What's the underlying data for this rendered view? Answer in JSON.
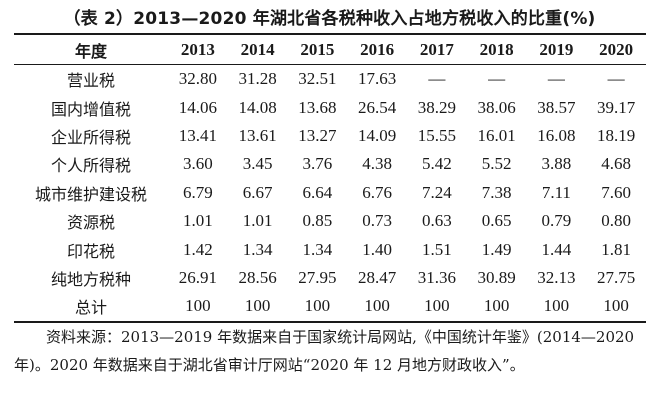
{
  "title": "（表 2）2013—2020 年湖北省各税种收入占地方税收入的比重(%)",
  "table": {
    "header_label": "年度",
    "years": [
      "2013",
      "2014",
      "2015",
      "2016",
      "2017",
      "2018",
      "2019",
      "2020"
    ],
    "rows": [
      {
        "label": "营业税",
        "values": [
          "32.80",
          "31.28",
          "32.51",
          "17.63",
          "—",
          "—",
          "—",
          "—"
        ]
      },
      {
        "label": "国内增值税",
        "values": [
          "14.06",
          "14.08",
          "13.68",
          "26.54",
          "38.29",
          "38.06",
          "38.57",
          "39.17"
        ]
      },
      {
        "label": "企业所得税",
        "values": [
          "13.41",
          "13.61",
          "13.27",
          "14.09",
          "15.55",
          "16.01",
          "16.08",
          "18.19"
        ]
      },
      {
        "label": "个人所得税",
        "values": [
          "3.60",
          "3.45",
          "3.76",
          "4.38",
          "5.42",
          "5.52",
          "3.88",
          "4.68"
        ]
      },
      {
        "label": "城市维护建设税",
        "values": [
          "6.79",
          "6.67",
          "6.64",
          "6.76",
          "7.24",
          "7.38",
          "7.11",
          "7.60"
        ]
      },
      {
        "label": "资源税",
        "values": [
          "1.01",
          "1.01",
          "0.85",
          "0.73",
          "0.63",
          "0.65",
          "0.79",
          "0.80"
        ]
      },
      {
        "label": "印花税",
        "values": [
          "1.42",
          "1.34",
          "1.34",
          "1.40",
          "1.51",
          "1.49",
          "1.44",
          "1.81"
        ]
      },
      {
        "label": "纯地方税种",
        "values": [
          "26.91",
          "28.56",
          "27.95",
          "28.47",
          "31.36",
          "30.89",
          "32.13",
          "27.75"
        ]
      },
      {
        "label": "总计",
        "values": [
          "100",
          "100",
          "100",
          "100",
          "100",
          "100",
          "100",
          "100"
        ]
      }
    ]
  },
  "note": "资料来源：2013—2019 年数据来自于国家统计局网站,《中国统计年鉴》(2014—2020 年)。2020 年数据来自于湖北省审计厅网站“2020 年 12 月地方财政收入”。"
}
